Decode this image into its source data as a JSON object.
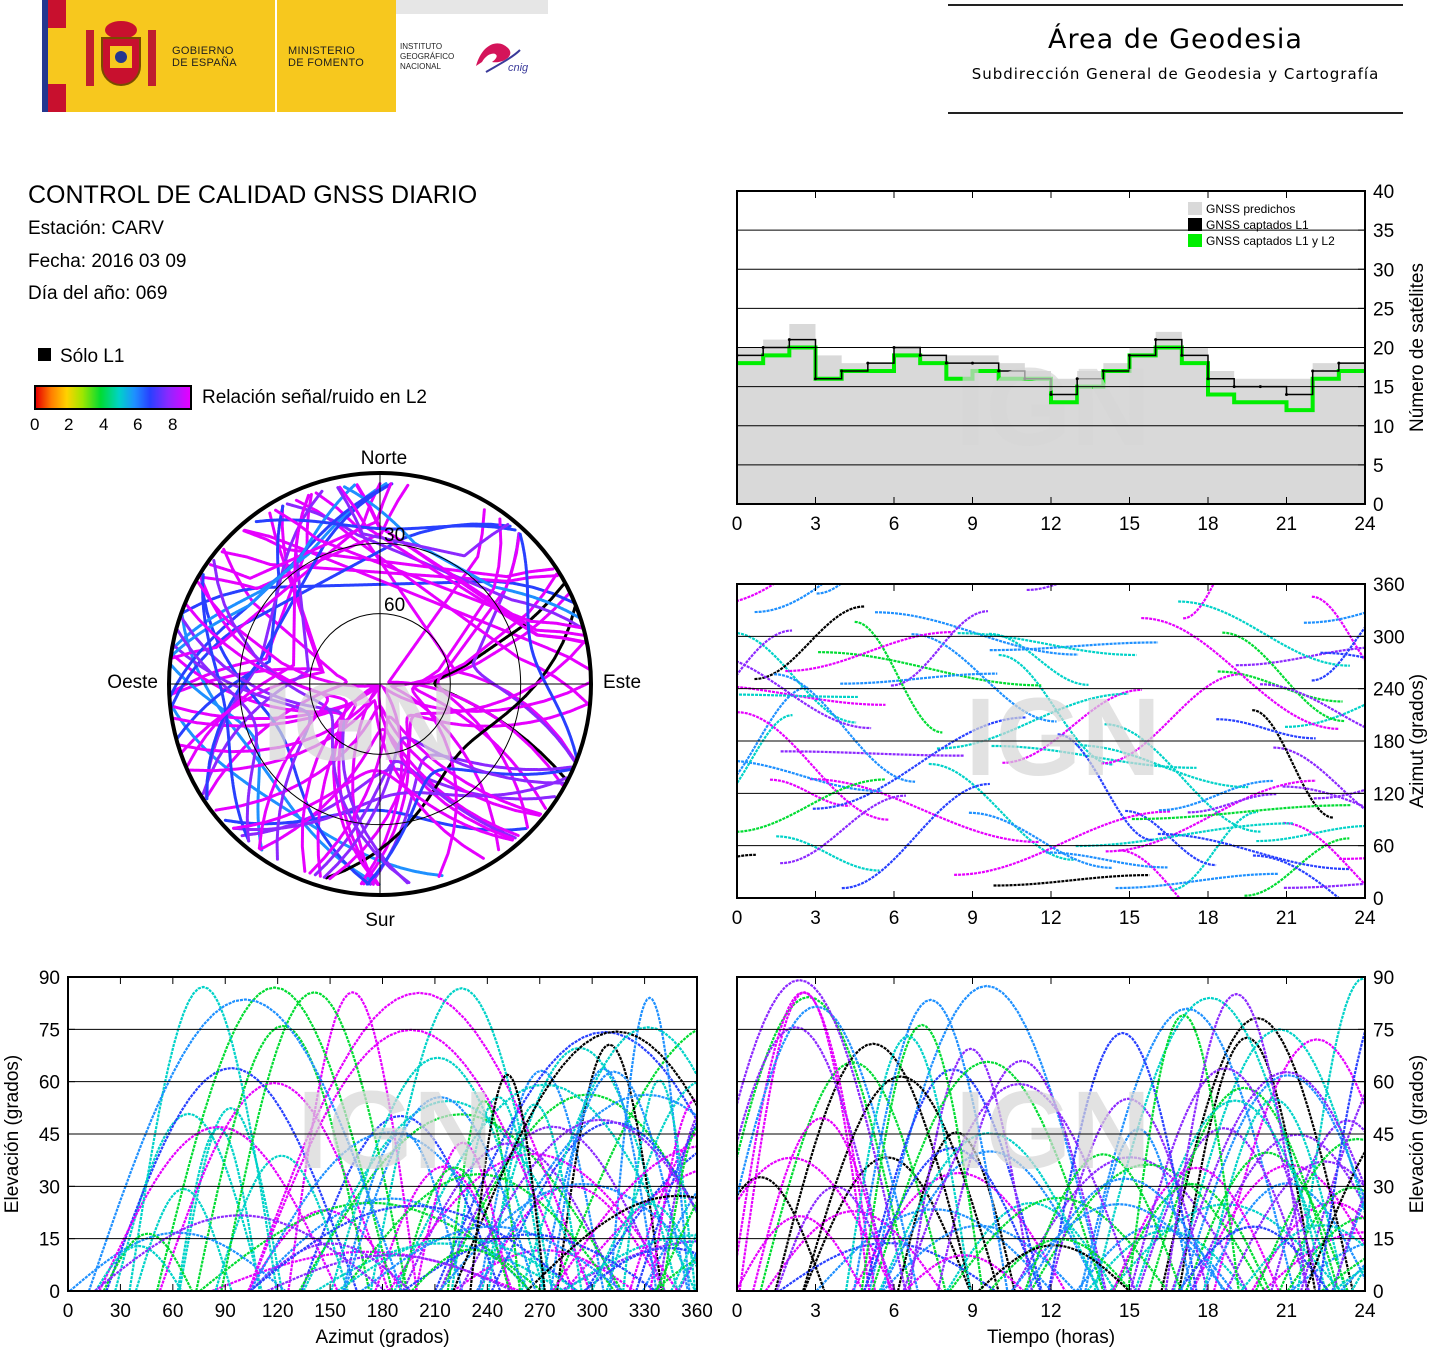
{
  "header": {
    "gobierno": [
      "GOBIERNO",
      "DE ESPAÑA"
    ],
    "ministerio": [
      "MINISTERIO",
      "DE FOMENTO"
    ],
    "instituto": [
      "INSTITUTO",
      "GEOGRÁFICO",
      "NACIONAL"
    ],
    "cnig": "cnig",
    "area_title": "Área de Geodesia",
    "area_subtitle": "Subdirección General de Geodesia y Cartografía"
  },
  "info": {
    "title": "CONTROL DE CALIDAD GNSS DIARIO",
    "station": "Estación: CARV",
    "date": "Fecha: 2016 03 09",
    "doy": "Día del año: 069"
  },
  "legend": {
    "l1_only": "Sólo L1",
    "snr_label": "Relación señal/ruido en L2",
    "snr_ticks": [
      "0",
      "2",
      "4",
      "6",
      "8"
    ],
    "l1_color": "#000000"
  },
  "watermark": "IGN",
  "colors": {
    "predicted": "#d9d9d9",
    "l1": "#000000",
    "l1l2": "#00ee00",
    "snr_scale": [
      "#e60000",
      "#ff7f00",
      "#ffd200",
      "#a0e600",
      "#00dc32",
      "#00d2c8",
      "#1e90ff",
      "#2840ff",
      "#8c28ff",
      "#e600ff"
    ]
  },
  "chart_data": [
    {
      "id": "satellites",
      "type": "line",
      "ylabel": "Número de satélites",
      "xlim": [
        0,
        24
      ],
      "ylim": [
        0,
        40
      ],
      "xticks": [
        "0",
        "3",
        "6",
        "9",
        "12",
        "15",
        "18",
        "21",
        "24"
      ],
      "yticks": [
        "0",
        "5",
        "10",
        "15",
        "20",
        "25",
        "30",
        "35",
        "40"
      ],
      "grid": true,
      "legend_position": "top-right",
      "x": [
        0,
        1,
        2,
        3,
        4,
        5,
        6,
        7,
        8,
        9,
        10,
        11,
        12,
        13,
        14,
        15,
        16,
        17,
        18,
        19,
        20,
        21,
        22,
        23,
        24
      ],
      "series": [
        {
          "name": "GNSS predichos",
          "values": [
            20,
            21,
            23,
            19,
            18,
            18,
            20,
            19,
            19,
            19,
            18,
            17,
            16,
            17,
            18,
            20,
            22,
            20,
            17,
            16,
            16,
            16,
            18,
            18,
            18
          ]
        },
        {
          "name": "GNSS captados L1",
          "values": [
            19,
            20,
            21,
            16,
            17,
            18,
            20,
            19,
            18,
            18,
            17,
            16,
            14,
            16,
            17,
            19,
            21,
            19,
            16,
            15,
            15,
            14,
            17,
            18,
            18
          ]
        },
        {
          "name": "GNSS captados L1 y L2",
          "values": [
            18,
            19,
            20,
            16,
            17,
            17,
            19,
            18,
            16,
            17,
            16,
            16,
            13,
            15,
            17,
            19,
            20,
            18,
            14,
            13,
            13,
            12,
            16,
            17,
            17
          ]
        }
      ]
    },
    {
      "id": "skyplot",
      "type": "scatter",
      "title": "",
      "labels": {
        "north": "Norte",
        "south": "Sur",
        "east": "Este",
        "west": "Oeste"
      },
      "ring_labels": [
        "30",
        "60"
      ]
    },
    {
      "id": "azimuth_time",
      "type": "scatter",
      "ylabel": "Azimut (grados)",
      "xlim": [
        0,
        24
      ],
      "ylim": [
        0,
        360
      ],
      "xticks": [
        "0",
        "3",
        "6",
        "9",
        "12",
        "15",
        "18",
        "21",
        "24"
      ],
      "yticks": [
        "0",
        "60",
        "120",
        "180",
        "240",
        "300",
        "360"
      ]
    },
    {
      "id": "elev_azimuth",
      "type": "scatter",
      "xlabel": "Azimut (grados)",
      "ylabel": "Elevación (grados)",
      "xlim": [
        0,
        360
      ],
      "ylim": [
        0,
        90
      ],
      "xticks": [
        "0",
        "30",
        "60",
        "90",
        "120",
        "150",
        "180",
        "210",
        "240",
        "270",
        "300",
        "330",
        "360"
      ],
      "yticks": [
        "0",
        "15",
        "30",
        "45",
        "60",
        "75",
        "90"
      ]
    },
    {
      "id": "elev_time",
      "type": "scatter",
      "xlabel": "Tiempo (horas)",
      "ylabel": "Elevación (grados)",
      "xlim": [
        0,
        24
      ],
      "ylim": [
        0,
        90
      ],
      "xticks": [
        "0",
        "3",
        "6",
        "9",
        "12",
        "15",
        "18",
        "21",
        "24"
      ],
      "yticks": [
        "0",
        "15",
        "30",
        "45",
        "60",
        "75",
        "90"
      ]
    }
  ]
}
